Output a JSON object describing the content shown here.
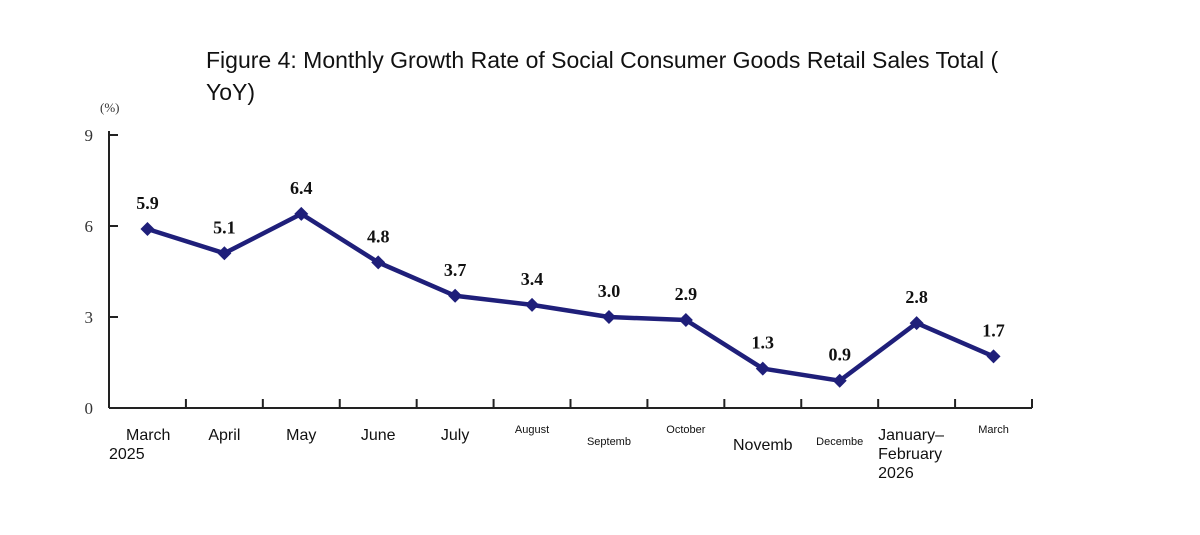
{
  "title": "Figure 4: Monthly Growth Rate of Social Consumer Goods Retail Sales Total (\nYoY)",
  "chart_data": {
    "type": "line",
    "title": "Figure 4: Monthly Growth Rate of Social Consumer Goods Retail Sales Total (\nYoY)",
    "ylabel": "(%)",
    "xlabel": "",
    "ylim": [
      0,
      9
    ],
    "yticks": [
      "0",
      "3",
      "6",
      "9"
    ],
    "grid": false,
    "categories": [
      "March\n2025",
      "April",
      "May",
      "June",
      "July",
      "August",
      "Septemb",
      "October",
      "Novemb",
      "Decembe",
      "January–\nFebruary\n2026",
      "March"
    ],
    "values": [
      5.9,
      5.1,
      6.4,
      4.8,
      3.7,
      3.4,
      3.0,
      2.9,
      1.3,
      0.9,
      2.8,
      1.7
    ],
    "data_labels": [
      "5.9",
      "5.1",
      "6.4",
      "4.8",
      "3.7",
      "3.4",
      "3.0",
      "2.9",
      "1.3",
      "0.9",
      "2.8",
      "1.7"
    ],
    "series_color": "#1f1f7a"
  }
}
